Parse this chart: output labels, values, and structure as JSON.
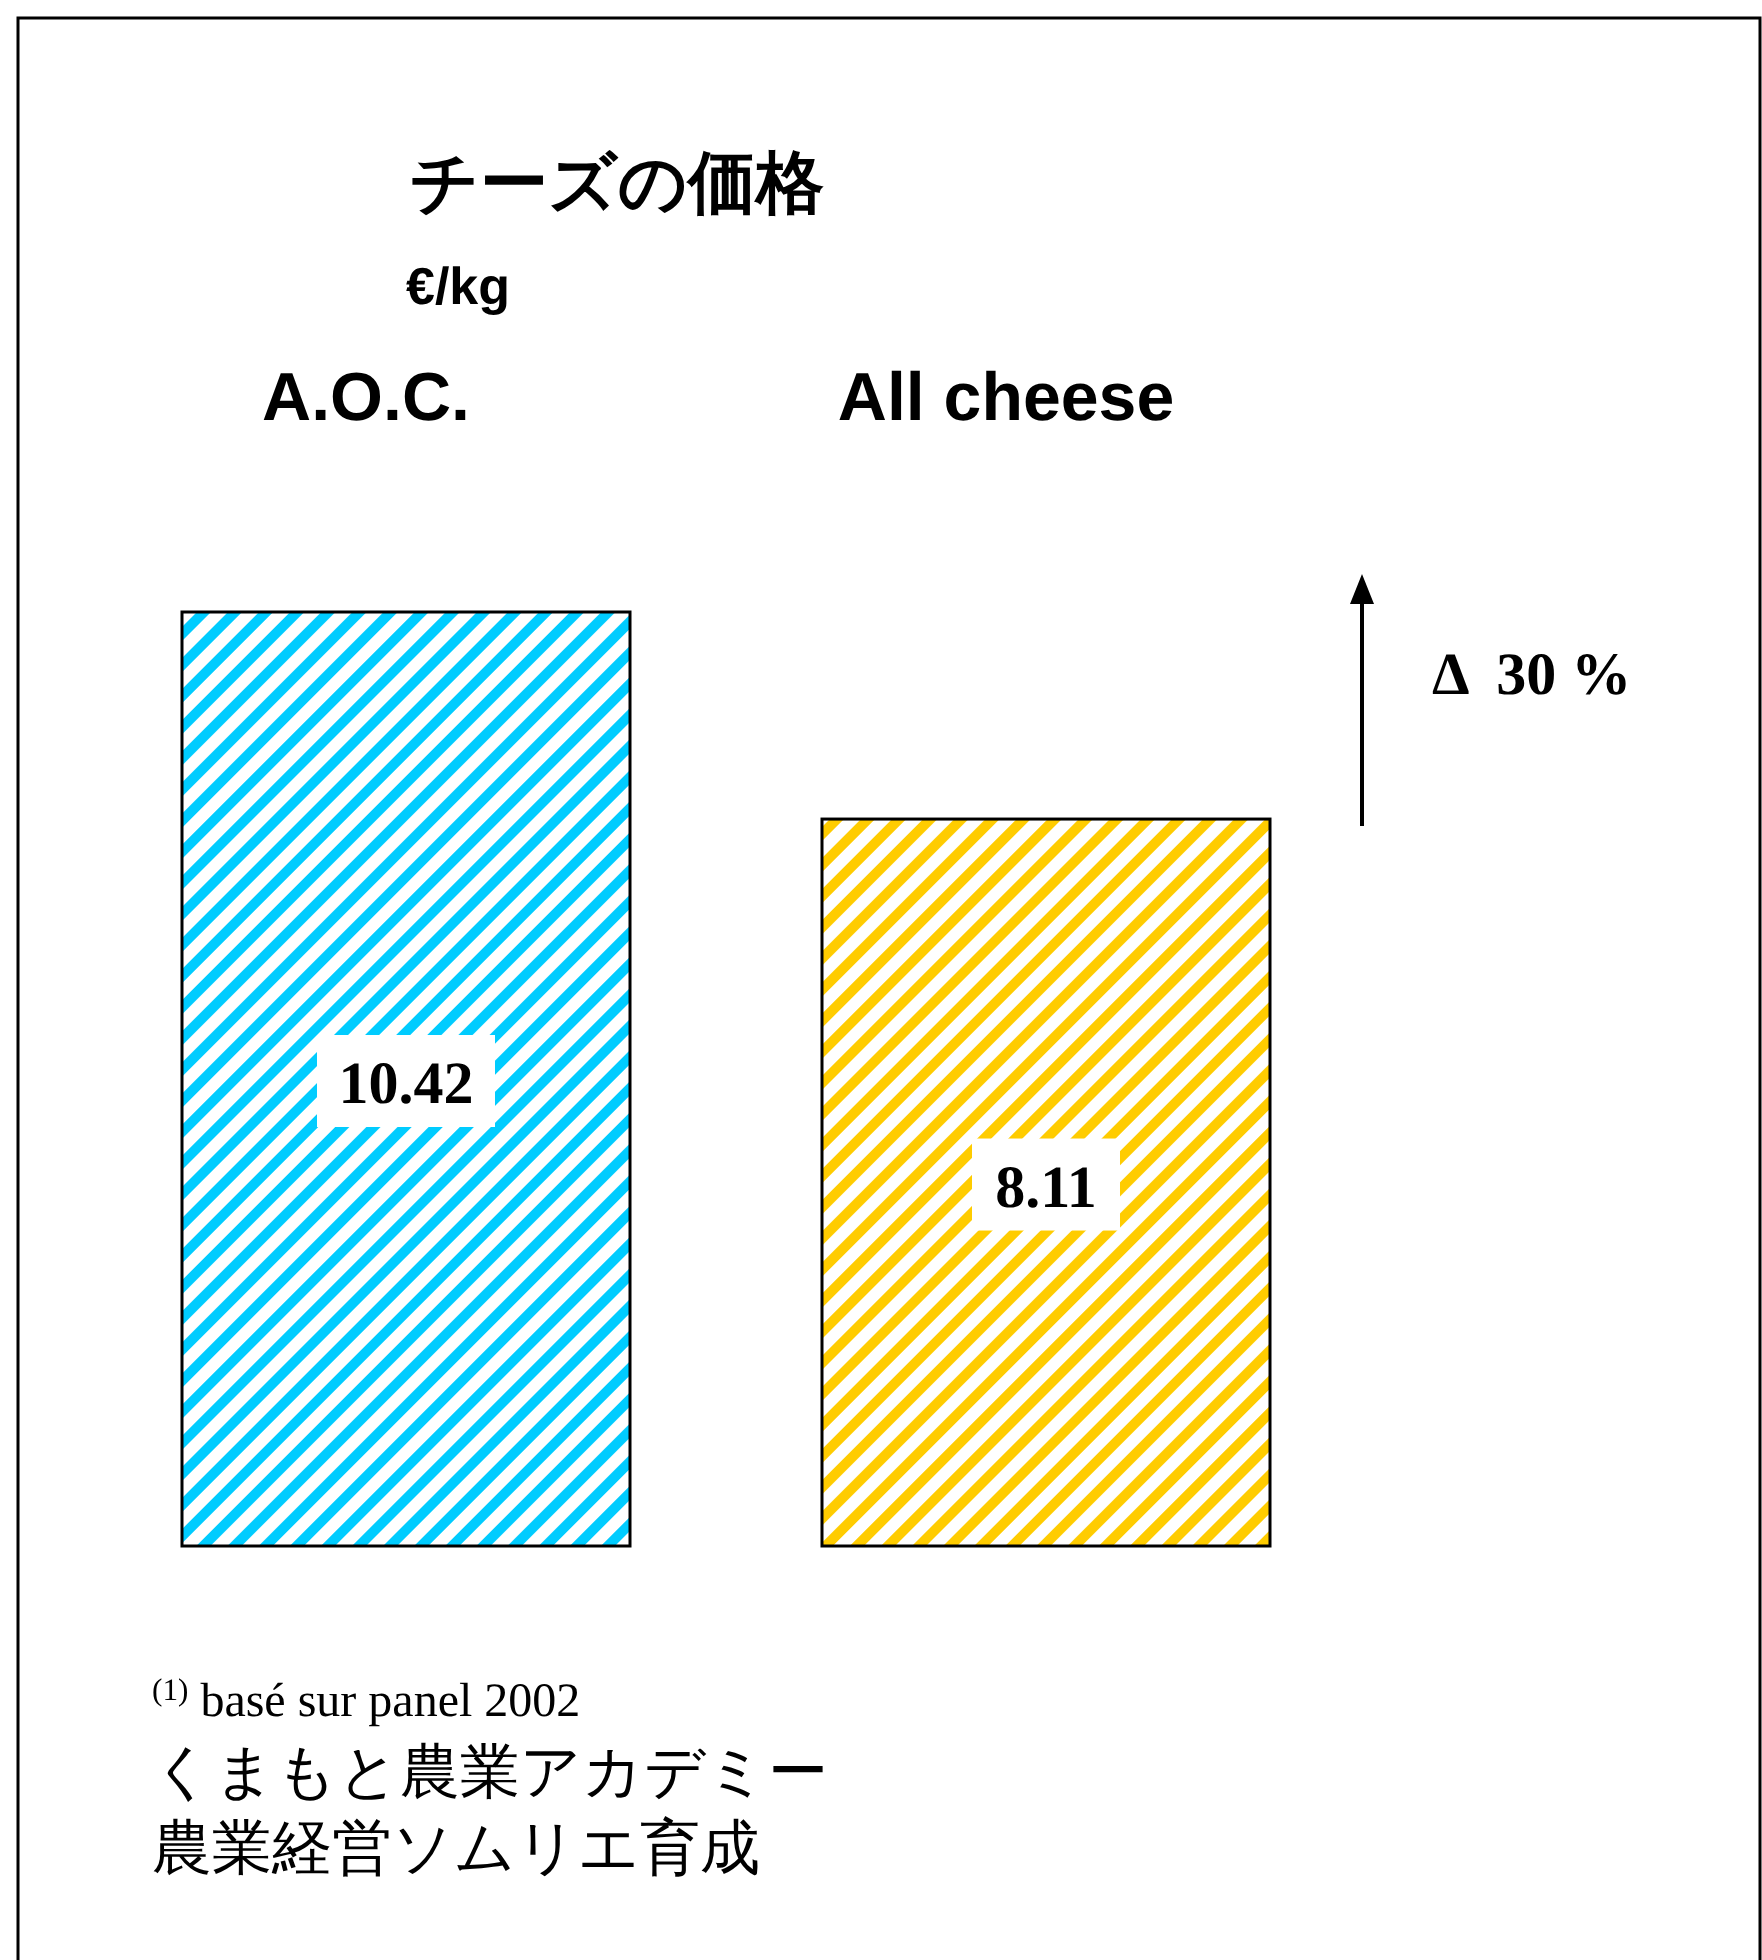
{
  "chart_data": {
    "type": "bar",
    "title": "チーズの価格",
    "ylabel": "€/kg",
    "categories": [
      "A.O.C.",
      "All cheese"
    ],
    "values": [
      10.42,
      8.11
    ],
    "colors": [
      "#00ccff",
      "#ffcc00"
    ],
    "data_labels": true,
    "annotations": [
      "Δ  30 %",
      "$^{(1)}$ basé sur panel 2002",
      "くまもと農業アカデミー",
      "農業経営ソムリエ育成"
    ]
  }
}
